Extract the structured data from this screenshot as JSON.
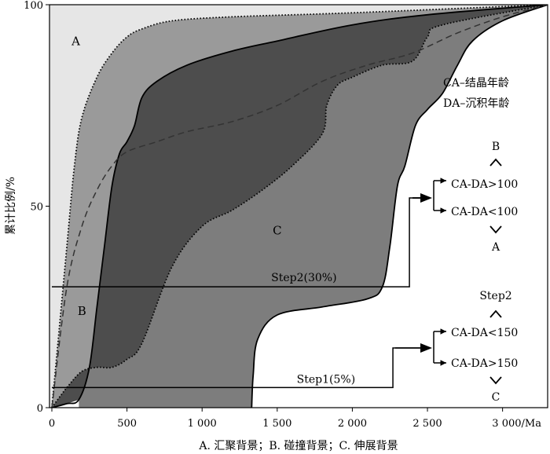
{
  "chart_data": {
    "type": "area",
    "ylabel": "累计比例/%",
    "x_axis_caption": "A. 汇聚背景；B. 碰撞背景；C. 伸展背景",
    "xlim": [
      0,
      3300
    ],
    "ylim": [
      0,
      100
    ],
    "x_ticks": [
      {
        "value": 0,
        "label": "0"
      },
      {
        "value": 500,
        "label": "500"
      },
      {
        "value": 1000,
        "label": "1 000"
      },
      {
        "value": 1500,
        "label": "1 500"
      },
      {
        "value": 2000,
        "label": "2 000"
      },
      {
        "value": 2500,
        "label": "2 500"
      },
      {
        "value": 3000,
        "label": "3 000/Ma"
      }
    ],
    "y_ticks": [
      {
        "value": 0,
        "label": "0"
      },
      {
        "value": 50,
        "label": "50"
      },
      {
        "value": 100,
        "label": "100"
      }
    ],
    "zone_labels": [
      {
        "text": "A",
        "x": 160,
        "y": 90
      },
      {
        "text": "B",
        "x": 200,
        "y": 23
      },
      {
        "text": "C",
        "x": 1500,
        "y": 43
      }
    ],
    "colors": {
      "zone_A": "#e6e6e6",
      "zone_B": "#9a9a9a",
      "zone_C_outer": "#7d7d7d",
      "zone_C_inner": "#4d4d4d"
    },
    "series": [
      {
        "role": "zone-A-upper-boundary",
        "style": "dotted",
        "points": [
          [
            0,
            0
          ],
          [
            50,
            20
          ],
          [
            100,
            40
          ],
          [
            150,
            60
          ],
          [
            200,
            72
          ],
          [
            300,
            82
          ],
          [
            400,
            88
          ],
          [
            500,
            92
          ],
          [
            600,
            94
          ],
          [
            800,
            96
          ],
          [
            1200,
            97
          ],
          [
            2000,
            98
          ],
          [
            3300,
            100
          ]
        ]
      },
      {
        "role": "zone-B-lower-boundary",
        "style": "solid",
        "points": [
          [
            0,
            0
          ],
          [
            100,
            1
          ],
          [
            180,
            2
          ],
          [
            250,
            10
          ],
          [
            300,
            25
          ],
          [
            350,
            40
          ],
          [
            400,
            55
          ],
          [
            450,
            63
          ],
          [
            500,
            66
          ],
          [
            550,
            70
          ],
          [
            600,
            77
          ],
          [
            700,
            81
          ],
          [
            900,
            85
          ],
          [
            1200,
            88.5
          ],
          [
            1500,
            91
          ],
          [
            2000,
            95
          ],
          [
            2500,
            97.5
          ],
          [
            3300,
            100
          ]
        ]
      },
      {
        "role": "zone-C-inner-lower-boundary",
        "style": "dotted",
        "points": [
          [
            0,
            0
          ],
          [
            100,
            5
          ],
          [
            200,
            9
          ],
          [
            300,
            10
          ],
          [
            400,
            10
          ],
          [
            500,
            12
          ],
          [
            600,
            16
          ],
          [
            800,
            35
          ],
          [
            1000,
            45
          ],
          [
            1200,
            49
          ],
          [
            1400,
            54
          ],
          [
            1600,
            60
          ],
          [
            1800,
            68
          ],
          [
            1830,
            75
          ],
          [
            1900,
            80
          ],
          [
            2000,
            82
          ],
          [
            2200,
            85
          ],
          [
            2400,
            86
          ],
          [
            2500,
            92
          ],
          [
            2600,
            95
          ],
          [
            3300,
            100
          ]
        ]
      },
      {
        "role": "zone-C-outer-lower-boundary",
        "style": "solid",
        "points": [
          [
            1330,
            0
          ],
          [
            1340,
            8
          ],
          [
            1370,
            17
          ],
          [
            1500,
            23
          ],
          [
            1800,
            25
          ],
          [
            2100,
            27
          ],
          [
            2200,
            30
          ],
          [
            2250,
            40
          ],
          [
            2300,
            55
          ],
          [
            2350,
            60
          ],
          [
            2420,
            70
          ],
          [
            2500,
            74
          ],
          [
            2600,
            78
          ],
          [
            2700,
            85
          ],
          [
            2800,
            91
          ],
          [
            3000,
            96
          ],
          [
            3300,
            100
          ]
        ]
      },
      {
        "role": "mean-curve",
        "style": "dashed",
        "points": [
          [
            0,
            0
          ],
          [
            100,
            30
          ],
          [
            200,
            45
          ],
          [
            300,
            54
          ],
          [
            400,
            60
          ],
          [
            500,
            63.5
          ],
          [
            700,
            66
          ],
          [
            900,
            68.5
          ],
          [
            1200,
            71
          ],
          [
            1500,
            75
          ],
          [
            1800,
            81
          ],
          [
            2100,
            85
          ],
          [
            2400,
            88
          ],
          [
            2700,
            93
          ],
          [
            3000,
            97
          ],
          [
            3300,
            100
          ]
        ]
      }
    ],
    "steps": [
      {
        "label": "Step1(5%)",
        "y": 5,
        "x_end": 2270,
        "anchor_x": 1630
      },
      {
        "label": "Step2(30%)",
        "y": 30,
        "x_end": 2380,
        "anchor_x": 1460
      }
    ],
    "legend_notes": [
      "CA–结晶年龄",
      "DA–沉积年龄"
    ],
    "decision_tree": {
      "step2_branches": [
        {
          "condition": "CA-DA>100",
          "result": "B"
        },
        {
          "condition": "CA-DA<100",
          "result": "A"
        }
      ],
      "step1_branches": [
        {
          "condition": "CA-DA<150",
          "result": "Step2"
        },
        {
          "condition": "CA-DA>150",
          "result": "C"
        }
      ]
    }
  }
}
